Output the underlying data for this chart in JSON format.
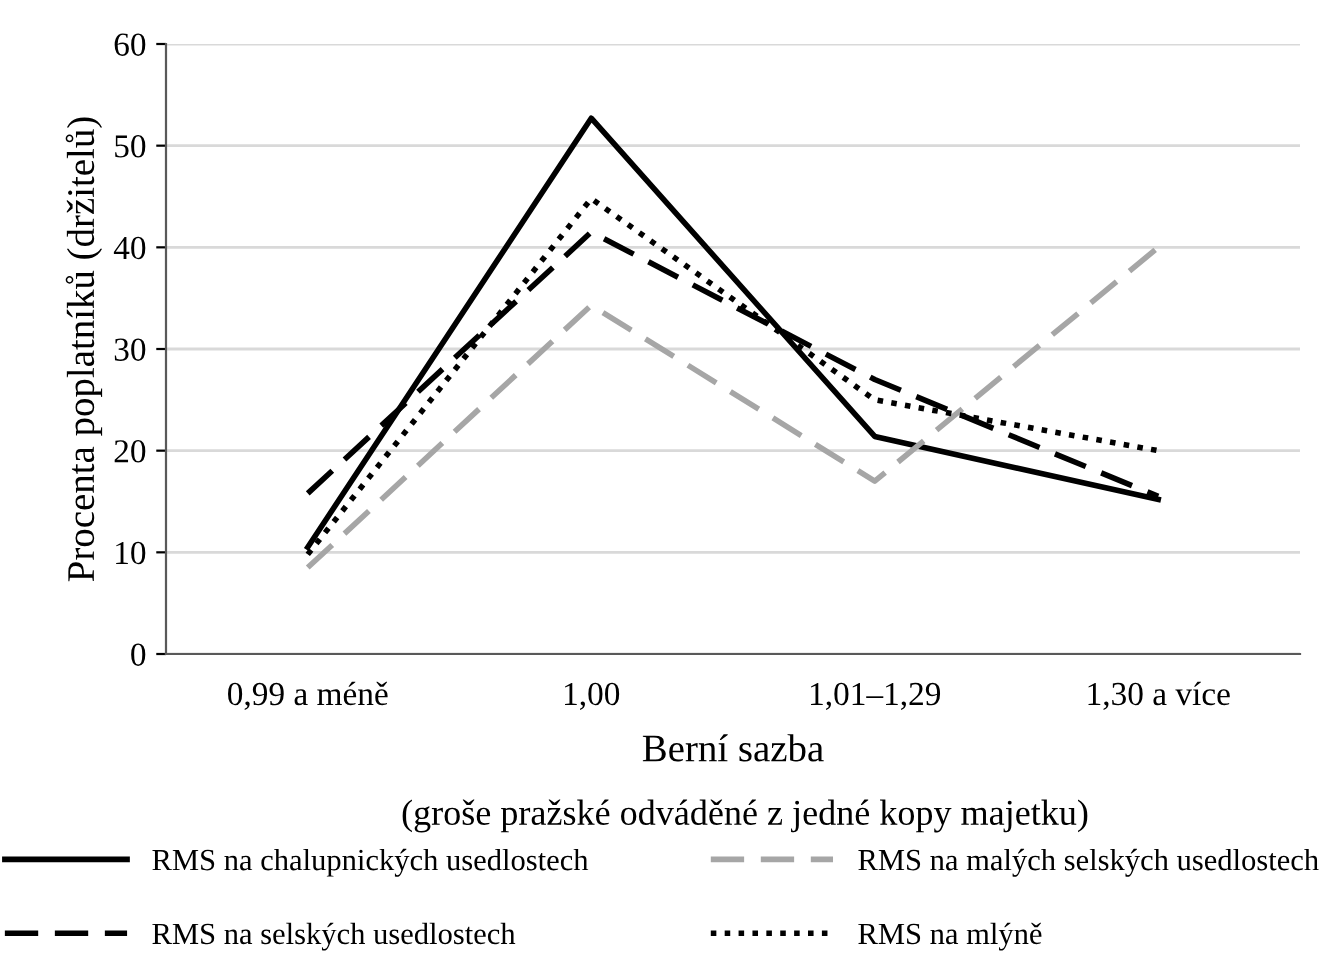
{
  "chart_data": {
    "type": "line",
    "ylabel": "Procenta poplatníků (držitelů)",
    "xlabel": "Berní sazba",
    "annotations": [
      "(groše pražské odváděné z jedné kopy majetku)"
    ],
    "categories": [
      "0,99 a méně",
      "1,00",
      "1,01–1,29",
      "1,30 a více"
    ],
    "series": [
      {
        "name": "RMS na chalupnických usedlostech",
        "color": "#000000",
        "line_style": "solid",
        "values": [
          10.5,
          52.7,
          21.4,
          15.2
        ]
      },
      {
        "name": "RMS na selských usedlostech",
        "color": "#000000",
        "line_style": "dashed",
        "values": [
          15.8,
          41.5,
          27,
          15.5
        ]
      },
      {
        "name": "RMS na malých selských usedlostech",
        "color": "#a6a6a6",
        "line_style": "dashed",
        "values": [
          8.5,
          34.3,
          17,
          40
        ]
      },
      {
        "name": "RMS na mlýně",
        "color": "#000000",
        "line_style": "dotted",
        "values": [
          9.8,
          44.8,
          25,
          20
        ]
      }
    ],
    "ylim": [
      0,
      60
    ],
    "yticks": [
      0,
      10,
      20,
      30,
      40,
      50,
      60
    ],
    "grid": "y",
    "legend": "bottom",
    "marker": "none"
  }
}
